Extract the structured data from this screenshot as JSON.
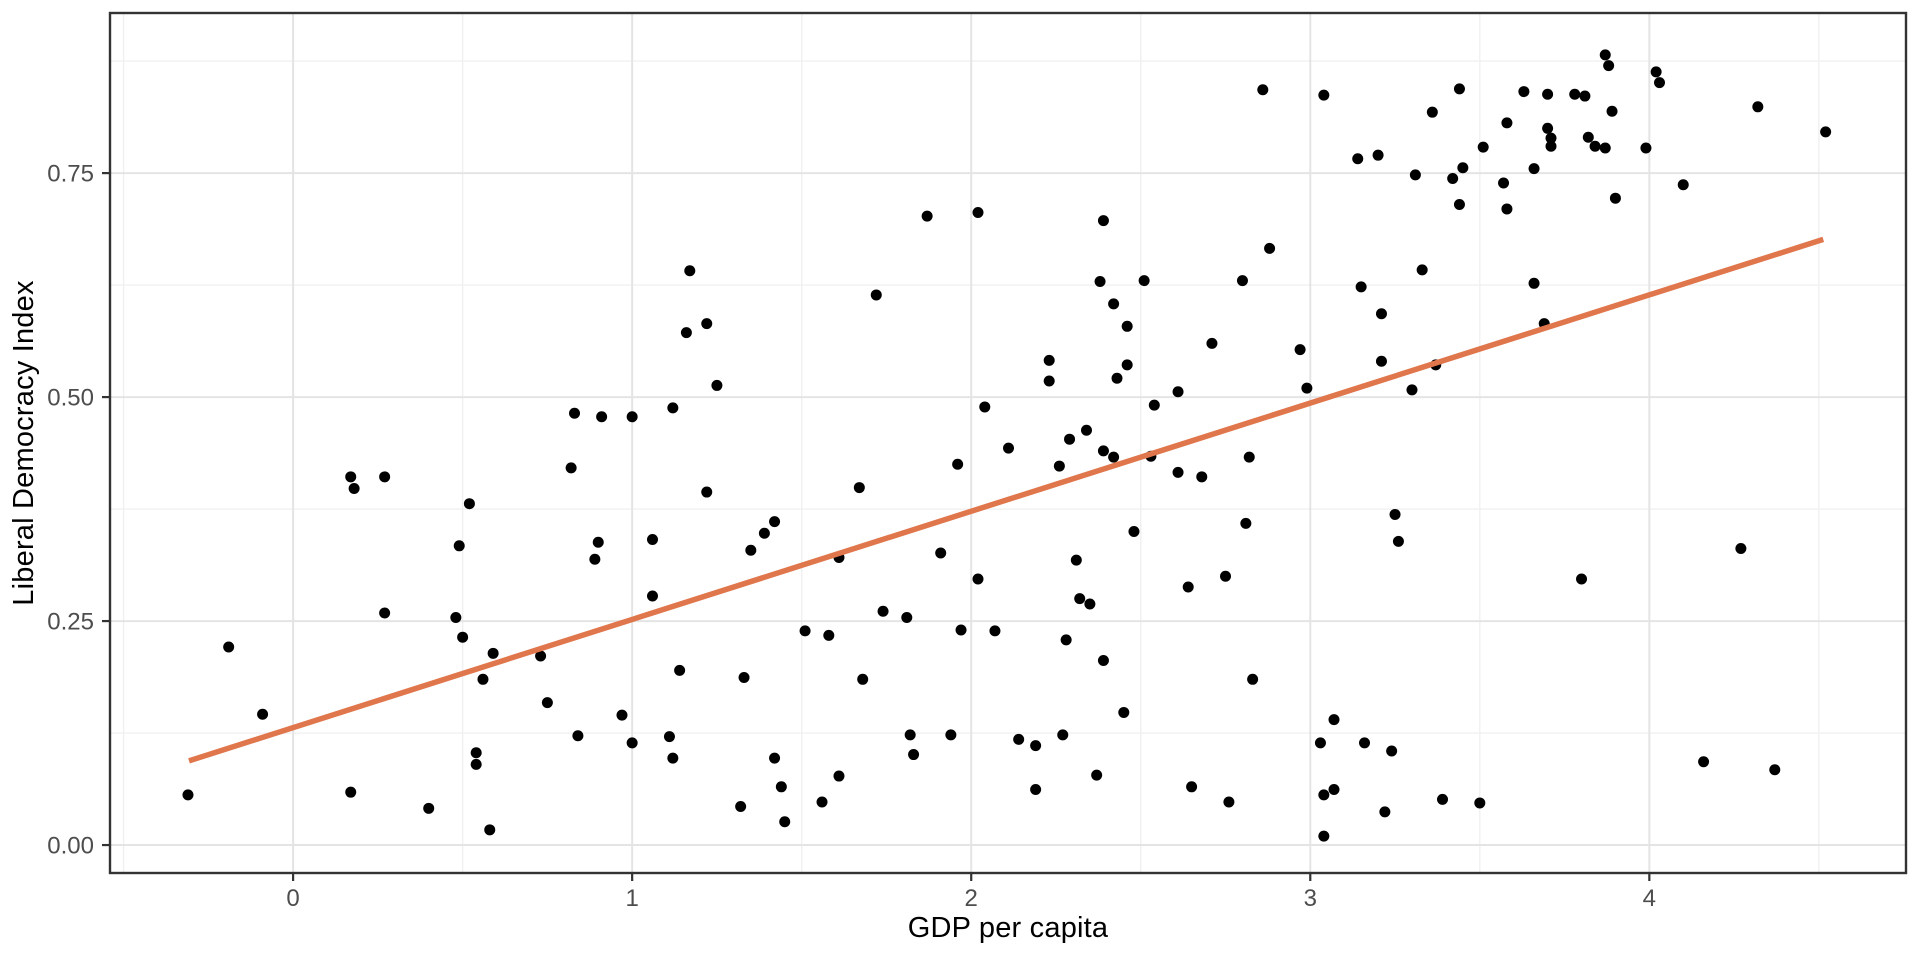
{
  "chart_data": {
    "type": "scatter",
    "title": "",
    "xlabel": "GDP per capita",
    "ylabel": "Liberal Democracy Index",
    "x_ticks": [
      {
        "value": 0,
        "label": "0"
      },
      {
        "value": 1,
        "label": "1"
      },
      {
        "value": 2,
        "label": "2"
      },
      {
        "value": 3,
        "label": "3"
      },
      {
        "value": 4,
        "label": "4"
      }
    ],
    "y_ticks": [
      {
        "value": 0,
        "label": "0.00"
      },
      {
        "value": 0.25,
        "label": "0.25"
      },
      {
        "value": 0.5,
        "label": "0.50"
      },
      {
        "value": 0.75,
        "label": "0.75"
      }
    ],
    "x_minor_ticks": [
      -0.5,
      0.5,
      1.5,
      2.5,
      3.5,
      4.5
    ],
    "y_minor_ticks": [
      0.125,
      0.375,
      0.625,
      0.875
    ],
    "xlim": [
      -0.54,
      4.757
    ],
    "ylim": [
      -0.0312,
      0.9287
    ],
    "grid": "major+minor",
    "legend": "none",
    "colors": {
      "point": "#000000",
      "trend_line": "#E0764C",
      "panel_border": "#333333",
      "grid_major": "#E4E4E4",
      "grid_minor": "#F0F0F0",
      "tick_mark": "#333333",
      "tick_label": "#4D4D4D",
      "background": "#FFFFFF"
    },
    "trend_line": {
      "x1": -0.307,
      "y1": 0.094,
      "x2": 4.513,
      "y2": 0.676
    },
    "points": [
      [
        -0.31,
        0.056
      ],
      [
        -0.19,
        0.221
      ],
      [
        -0.09,
        0.146
      ],
      [
        0.17,
        0.411
      ],
      [
        0.18,
        0.398
      ],
      [
        0.27,
        0.411
      ],
      [
        0.17,
        0.059
      ],
      [
        0.27,
        0.259
      ],
      [
        0.4,
        0.041
      ],
      [
        0.48,
        0.254
      ],
      [
        0.5,
        0.232
      ],
      [
        0.52,
        0.381
      ],
      [
        0.49,
        0.334
      ],
      [
        0.54,
        0.103
      ],
      [
        0.54,
        0.09
      ],
      [
        0.58,
        0.017
      ],
      [
        0.59,
        0.214
      ],
      [
        0.73,
        0.211
      ],
      [
        0.56,
        0.185
      ],
      [
        0.75,
        0.159
      ],
      [
        0.84,
        0.122
      ],
      [
        0.82,
        0.421
      ],
      [
        0.83,
        0.482
      ],
      [
        0.91,
        0.478
      ],
      [
        1.0,
        0.478
      ],
      [
        0.9,
        0.338
      ],
      [
        0.89,
        0.319
      ],
      [
        1.0,
        0.114
      ],
      [
        0.97,
        0.145
      ],
      [
        1.11,
        0.121
      ],
      [
        1.12,
        0.097
      ],
      [
        1.12,
        0.488
      ],
      [
        1.16,
        0.572
      ],
      [
        1.17,
        0.641
      ],
      [
        1.22,
        0.582
      ],
      [
        1.25,
        0.513
      ],
      [
        1.22,
        0.394
      ],
      [
        1.06,
        0.341
      ],
      [
        1.06,
        0.278
      ],
      [
        1.14,
        0.195
      ],
      [
        1.33,
        0.187
      ],
      [
        1.32,
        0.043
      ],
      [
        1.39,
        0.348
      ],
      [
        1.35,
        0.329
      ],
      [
        1.42,
        0.361
      ],
      [
        1.42,
        0.097
      ],
      [
        1.44,
        0.065
      ],
      [
        1.45,
        0.026
      ],
      [
        1.51,
        0.239
      ],
      [
        1.56,
        0.048
      ],
      [
        1.58,
        0.234
      ],
      [
        1.61,
        0.077
      ],
      [
        1.61,
        0.321
      ],
      [
        1.67,
        0.399
      ],
      [
        1.68,
        0.185
      ],
      [
        1.72,
        0.614
      ],
      [
        1.74,
        0.261
      ],
      [
        1.81,
        0.254
      ],
      [
        1.83,
        0.101
      ],
      [
        1.82,
        0.123
      ],
      [
        1.87,
        0.702
      ],
      [
        1.91,
        0.326
      ],
      [
        1.94,
        0.123
      ],
      [
        1.96,
        0.425
      ],
      [
        1.97,
        0.24
      ],
      [
        2.02,
        0.706
      ],
      [
        2.02,
        0.297
      ],
      [
        2.04,
        0.489
      ],
      [
        2.07,
        0.239
      ],
      [
        2.11,
        0.443
      ],
      [
        2.14,
        0.118
      ],
      [
        2.19,
        0.111
      ],
      [
        2.19,
        0.062
      ],
      [
        2.23,
        0.518
      ],
      [
        2.23,
        0.541
      ],
      [
        2.26,
        0.423
      ],
      [
        2.27,
        0.123
      ],
      [
        2.28,
        0.229
      ],
      [
        2.29,
        0.453
      ],
      [
        2.31,
        0.318
      ],
      [
        2.32,
        0.275
      ],
      [
        2.34,
        0.463
      ],
      [
        2.35,
        0.269
      ],
      [
        2.37,
        0.078
      ],
      [
        2.38,
        0.629
      ],
      [
        2.39,
        0.697
      ],
      [
        2.39,
        0.44
      ],
      [
        2.39,
        0.206
      ],
      [
        2.42,
        0.433
      ],
      [
        2.42,
        0.604
      ],
      [
        2.43,
        0.521
      ],
      [
        2.45,
        0.148
      ],
      [
        2.46,
        0.536
      ],
      [
        2.46,
        0.579
      ],
      [
        2.48,
        0.35
      ],
      [
        2.51,
        0.63
      ],
      [
        2.53,
        0.434
      ],
      [
        2.54,
        0.491
      ],
      [
        2.61,
        0.506
      ],
      [
        2.61,
        0.416
      ],
      [
        2.64,
        0.288
      ],
      [
        2.65,
        0.065
      ],
      [
        2.68,
        0.411
      ],
      [
        2.71,
        0.56
      ],
      [
        2.76,
        0.048
      ],
      [
        2.75,
        0.3
      ],
      [
        2.8,
        0.63
      ],
      [
        2.81,
        0.359
      ],
      [
        2.82,
        0.433
      ],
      [
        2.83,
        0.185
      ],
      [
        2.86,
        0.843
      ],
      [
        2.88,
        0.666
      ],
      [
        2.97,
        0.553
      ],
      [
        2.99,
        0.51
      ],
      [
        3.03,
        0.114
      ],
      [
        3.04,
        0.837
      ],
      [
        3.04,
        0.056
      ],
      [
        3.04,
        0.01
      ],
      [
        3.07,
        0.062
      ],
      [
        3.07,
        0.14
      ],
      [
        3.14,
        0.766
      ],
      [
        3.15,
        0.623
      ],
      [
        3.16,
        0.114
      ],
      [
        3.2,
        0.77
      ],
      [
        3.21,
        0.54
      ],
      [
        3.21,
        0.593
      ],
      [
        3.22,
        0.037
      ],
      [
        3.24,
        0.105
      ],
      [
        3.25,
        0.369
      ],
      [
        3.26,
        0.339
      ],
      [
        3.3,
        0.508
      ],
      [
        3.31,
        0.748
      ],
      [
        3.33,
        0.642
      ],
      [
        3.36,
        0.818
      ],
      [
        3.37,
        0.536
      ],
      [
        3.39,
        0.051
      ],
      [
        3.42,
        0.744
      ],
      [
        3.44,
        0.715
      ],
      [
        3.44,
        0.844
      ],
      [
        3.45,
        0.756
      ],
      [
        3.5,
        0.047
      ],
      [
        3.51,
        0.779
      ],
      [
        3.57,
        0.739
      ],
      [
        3.58,
        0.806
      ],
      [
        3.58,
        0.71
      ],
      [
        3.63,
        0.841
      ],
      [
        3.66,
        0.627
      ],
      [
        3.66,
        0.755
      ],
      [
        3.69,
        0.582
      ],
      [
        3.7,
        0.838
      ],
      [
        3.7,
        0.8
      ],
      [
        3.71,
        0.78
      ],
      [
        3.71,
        0.789
      ],
      [
        3.78,
        0.838
      ],
      [
        3.8,
        0.297
      ],
      [
        3.81,
        0.836
      ],
      [
        3.82,
        0.79
      ],
      [
        3.84,
        0.78
      ],
      [
        3.87,
        0.778
      ],
      [
        3.87,
        0.882
      ],
      [
        3.88,
        0.87
      ],
      [
        3.89,
        0.819
      ],
      [
        3.9,
        0.722
      ],
      [
        3.99,
        0.778
      ],
      [
        4.02,
        0.863
      ],
      [
        4.03,
        0.851
      ],
      [
        4.1,
        0.737
      ],
      [
        4.16,
        0.093
      ],
      [
        4.27,
        0.331
      ],
      [
        4.32,
        0.824
      ],
      [
        4.37,
        0.084
      ],
      [
        4.52,
        0.796
      ]
    ]
  }
}
